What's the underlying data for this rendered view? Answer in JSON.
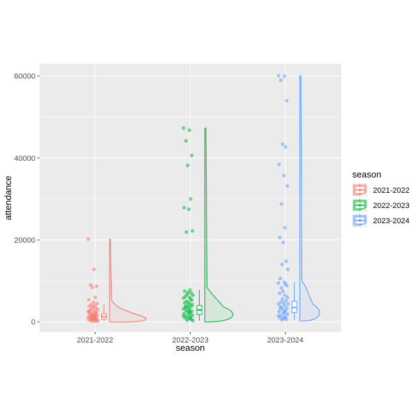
{
  "chart_data": {
    "type": "raincloud",
    "xlabel": "season",
    "ylabel": "attendance",
    "ylim": [
      -2500,
      63000
    ],
    "yticks": [
      0,
      20000,
      40000,
      60000
    ],
    "yticklabels": [
      "0",
      "20000",
      "40000",
      "60000"
    ],
    "categories": [
      "2021-2022",
      "2022-2023",
      "2023-2024"
    ],
    "grid": true,
    "background": "#ebebeb",
    "legend": {
      "title": "season",
      "placement": "right",
      "entries": [
        "2021-2022",
        "2022-2023",
        "2023-2024"
      ]
    },
    "series": [
      {
        "name": "2021-2022",
        "color": "#F8766D",
        "box": {
          "min": 100,
          "q1": 700,
          "median": 1300,
          "q3": 2000,
          "max": 4300
        },
        "density_max": 20200,
        "points": [
          20200,
          12800,
          9000,
          8700,
          8400,
          6000,
          5400,
          4800,
          4500,
          4200,
          4000,
          3800,
          3600,
          3400,
          3200,
          3000,
          2800,
          2700,
          2500,
          2300,
          2200,
          2000,
          1900,
          1800,
          1700,
          1600,
          1500,
          1400,
          1300,
          1200,
          1100,
          1000,
          900,
          800,
          700,
          600,
          500,
          400,
          300,
          200,
          100,
          2600,
          1500,
          900,
          600,
          300
        ]
      },
      {
        "name": "2022-2023",
        "color": "#00BA38",
        "box": {
          "min": 300,
          "q1": 1800,
          "median": 2900,
          "q3": 4000,
          "max": 7800
        },
        "density_max": 47300,
        "points": [
          47300,
          46800,
          44200,
          40600,
          38200,
          30000,
          27900,
          27500,
          22200,
          21900,
          7800,
          7500,
          7200,
          7000,
          6700,
          6500,
          6200,
          6000,
          5800,
          5600,
          5300,
          5000,
          4800,
          4600,
          4400,
          4200,
          4000,
          3800,
          3600,
          3400,
          3200,
          3000,
          2800,
          2600,
          2400,
          2200,
          2000,
          1800,
          1600,
          1400,
          1200,
          1000,
          800,
          600,
          400,
          300,
          3700,
          2500,
          1500,
          900
        ]
      },
      {
        "name": "2023-2024",
        "color": "#619CFF",
        "box": {
          "min": 500,
          "q1": 2300,
          "median": 3500,
          "q3": 5000,
          "max": 9700
        },
        "density_max": 60100,
        "points": [
          60100,
          60000,
          59000,
          54000,
          43400,
          42700,
          38400,
          35700,
          33200,
          28800,
          23000,
          20600,
          19400,
          14800,
          14000,
          12800,
          10600,
          9700,
          9500,
          9200,
          8800,
          8300,
          7500,
          7000,
          6500,
          6000,
          5600,
          5200,
          4900,
          4600,
          4300,
          4000,
          3700,
          3400,
          3100,
          2800,
          2500,
          2200,
          1900,
          1600,
          1300,
          1000,
          800,
          600,
          500,
          4400,
          3300,
          2400,
          1500,
          1000
        ]
      }
    ]
  }
}
